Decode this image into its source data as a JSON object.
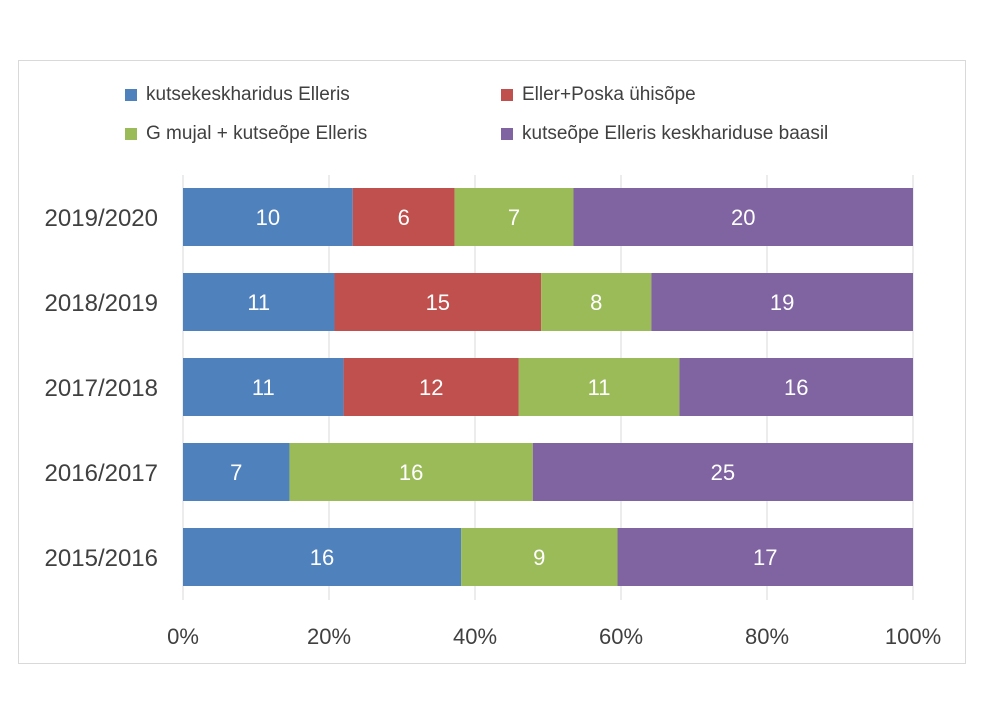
{
  "chart_data": {
    "type": "bar",
    "orientation": "horizontal",
    "stacking": "percent",
    "title": "",
    "xlabel": "",
    "ylabel": "",
    "xlim": [
      0,
      100
    ],
    "x_ticks": [
      "0%",
      "20%",
      "40%",
      "60%",
      "80%",
      "100%"
    ],
    "categories": [
      "2019/2020",
      "2018/2019",
      "2017/2018",
      "2016/2017",
      "2015/2016"
    ],
    "series": [
      {
        "name": "kutsekeskharidus Elleris",
        "color": "#4F81BD",
        "values": [
          10,
          11,
          11,
          7,
          16
        ]
      },
      {
        "name": "Eller+Poska ühisõpe",
        "color": "#C0504D",
        "values": [
          6,
          15,
          12,
          null,
          null
        ]
      },
      {
        "name": "G mujal + kutseõpe Elleris",
        "color": "#9BBB59",
        "values": [
          7,
          8,
          11,
          16,
          9
        ]
      },
      {
        "name": "kutseõpe Elleris keskhariduse baasil",
        "color": "#8064A2",
        "values": [
          20,
          19,
          16,
          25,
          17
        ]
      }
    ],
    "legend_position": "top",
    "grid": "vertical",
    "data_labels": true
  }
}
